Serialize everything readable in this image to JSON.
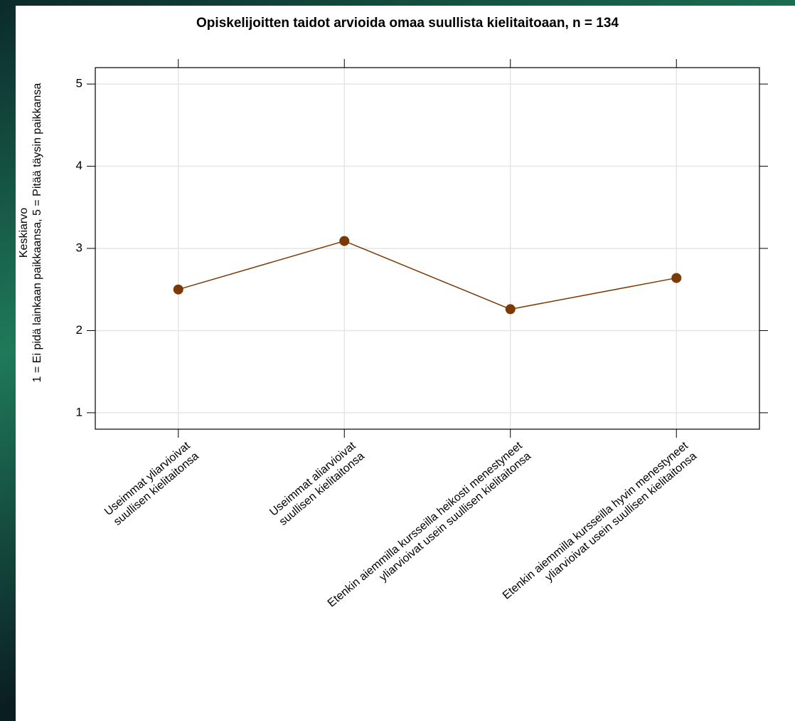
{
  "chart_data": {
    "type": "line",
    "title": "Opiskelijoitten taidot arvioida omaa suullista kielitaitoaan, n = 134",
    "ylabel": "Keskiarvo\n1 = Ei pidä lainkaan paikkaansa, 5 = Pitää täysin paikkansa",
    "categories": [
      "Useimmat yliarvioivat\nsuullisen kielitaitonsa",
      "Useimmat aliarvioivat\nsuullisen kielitaitonsa",
      "Etenkin aiemmilla kursseilla heikosti menestyneet\nyliarvioivat usein suullisen kielitaitonsa",
      "Etenkin aiemmilla kursseilla hyvin menestyneet\nyliarvioivat usein suullisen kielitaitonsa"
    ],
    "values": [
      2.5,
      3.09,
      2.26,
      2.64
    ],
    "color": "#7a3a05",
    "ylim": [
      0.8,
      5.2
    ],
    "yticks": [
      1,
      2,
      3,
      4,
      5
    ],
    "grid": true
  }
}
